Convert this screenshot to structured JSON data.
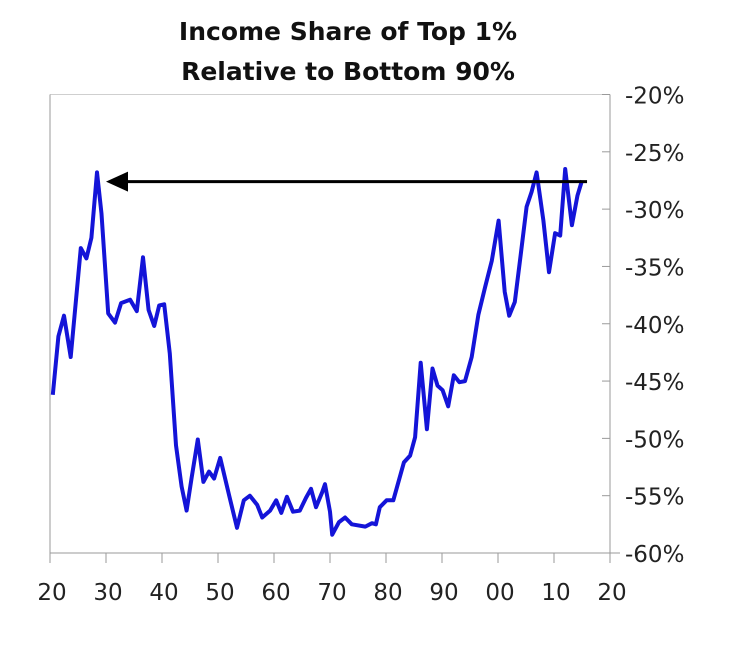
{
  "chart_data": {
    "type": "line",
    "title_lines": [
      "Income Share of Top 1%",
      "Relative to Bottom 90%"
    ],
    "xlabel": "",
    "ylabel": "",
    "xlim": [
      1920,
      2020
    ],
    "ylim": [
      -60,
      -20
    ],
    "x_ticks": [
      1920,
      1930,
      1940,
      1950,
      1960,
      1970,
      1980,
      1990,
      2000,
      2010,
      2020
    ],
    "x_tick_labels": [
      "20",
      "30",
      "40",
      "50",
      "60",
      "70",
      "80",
      "90",
      "00",
      "10",
      "20"
    ],
    "y_ticks": [
      -20,
      -25,
      -30,
      -35,
      -40,
      -45,
      -50,
      -55,
      -60
    ],
    "y_tick_labels": [
      "-20%",
      "-25%",
      "-30%",
      "-35%",
      "-40%",
      "-45%",
      "-50%",
      "-55%",
      "-60%"
    ],
    "y_axis_side": "right",
    "grid": false,
    "line_color": "#1414d8",
    "series": [
      {
        "x": [
          1920.5,
          1921.5,
          1922.5,
          1923.7,
          1925.5,
          1926.5,
          1927.4,
          1928.4,
          1929.2,
          1930.4,
          1931.6,
          1932.7,
          1934.3,
          1935.5,
          1936.6,
          1937.6,
          1938.6,
          1939.5,
          1940.4,
          1941.4,
          1942.5,
          1943.5,
          1944.4,
          1945.3,
          1946.4,
          1947.4,
          1948.4,
          1949.3,
          1950.4,
          1952,
          1953.4,
          1954.6,
          1955.7,
          1957,
          1957.9,
          1959.3,
          1960.4,
          1961.3,
          1962.3,
          1963.4,
          1964.6,
          1965.7,
          1966.6,
          1967.5,
          1968.6,
          1969.1,
          1970,
          1970.4,
          1971.6,
          1972.7,
          1973.9,
          1976.3,
          1977.5,
          1978.2,
          1978.9,
          1980.1,
          1981.3,
          1983.2,
          1984.3,
          1985.2,
          1986.2,
          1987.3,
          1988.3,
          1989.2,
          1990.1,
          1991.1,
          1992.1,
          1993.1,
          1994.1,
          1995.3,
          1996.5,
          1997.7,
          1998.9,
          2000.1,
          2001.2,
          2002,
          2003,
          2004,
          2005.1,
          2006,
          2006.9,
          2008.1,
          2009.1,
          2010.2,
          2011.1,
          2012,
          2013.2,
          2014.2,
          2015
        ],
        "y": [
          -46.2,
          -41.1,
          -39.3,
          -42.9,
          -33.4,
          -34.3,
          -32.5,
          -26.8,
          -30.4,
          -39.1,
          -39.9,
          -38.2,
          -37.9,
          -38.9,
          -34.2,
          -38.8,
          -40.2,
          -38.4,
          -38.3,
          -42.6,
          -50.6,
          -54.2,
          -56.3,
          -53.4,
          -50.1,
          -53.8,
          -52.9,
          -53.5,
          -51.7,
          -55.0,
          -57.8,
          -55.4,
          -55.0,
          -55.8,
          -56.9,
          -56.3,
          -55.4,
          -56.5,
          -55.1,
          -56.4,
          -56.3,
          -55.2,
          -54.4,
          -56.0,
          -54.7,
          -54.0,
          -56.4,
          -58.4,
          -57.3,
          -56.9,
          -57.5,
          -57.7,
          -57.4,
          -57.5,
          -56.0,
          -55.4,
          -55.4,
          -52.1,
          -51.5,
          -49.9,
          -43.4,
          -49.2,
          -43.9,
          -45.4,
          -45.8,
          -47.2,
          -44.5,
          -45.1,
          -45.0,
          -42.9,
          -39.2,
          -36.8,
          -34.5,
          -31.0,
          -37.2,
          -39.3,
          -38.1,
          -34.2,
          -29.8,
          -28.5,
          -26.8,
          -31.0,
          -35.5,
          -32.1,
          -32.3,
          -26.5,
          -31.4,
          -28.8,
          -27.5
        ]
      }
    ],
    "annotations": [
      {
        "type": "arrow",
        "from": [
          2015.9,
          -27.6
        ],
        "to": [
          1930,
          -27.6
        ],
        "color": "#000000"
      }
    ]
  }
}
